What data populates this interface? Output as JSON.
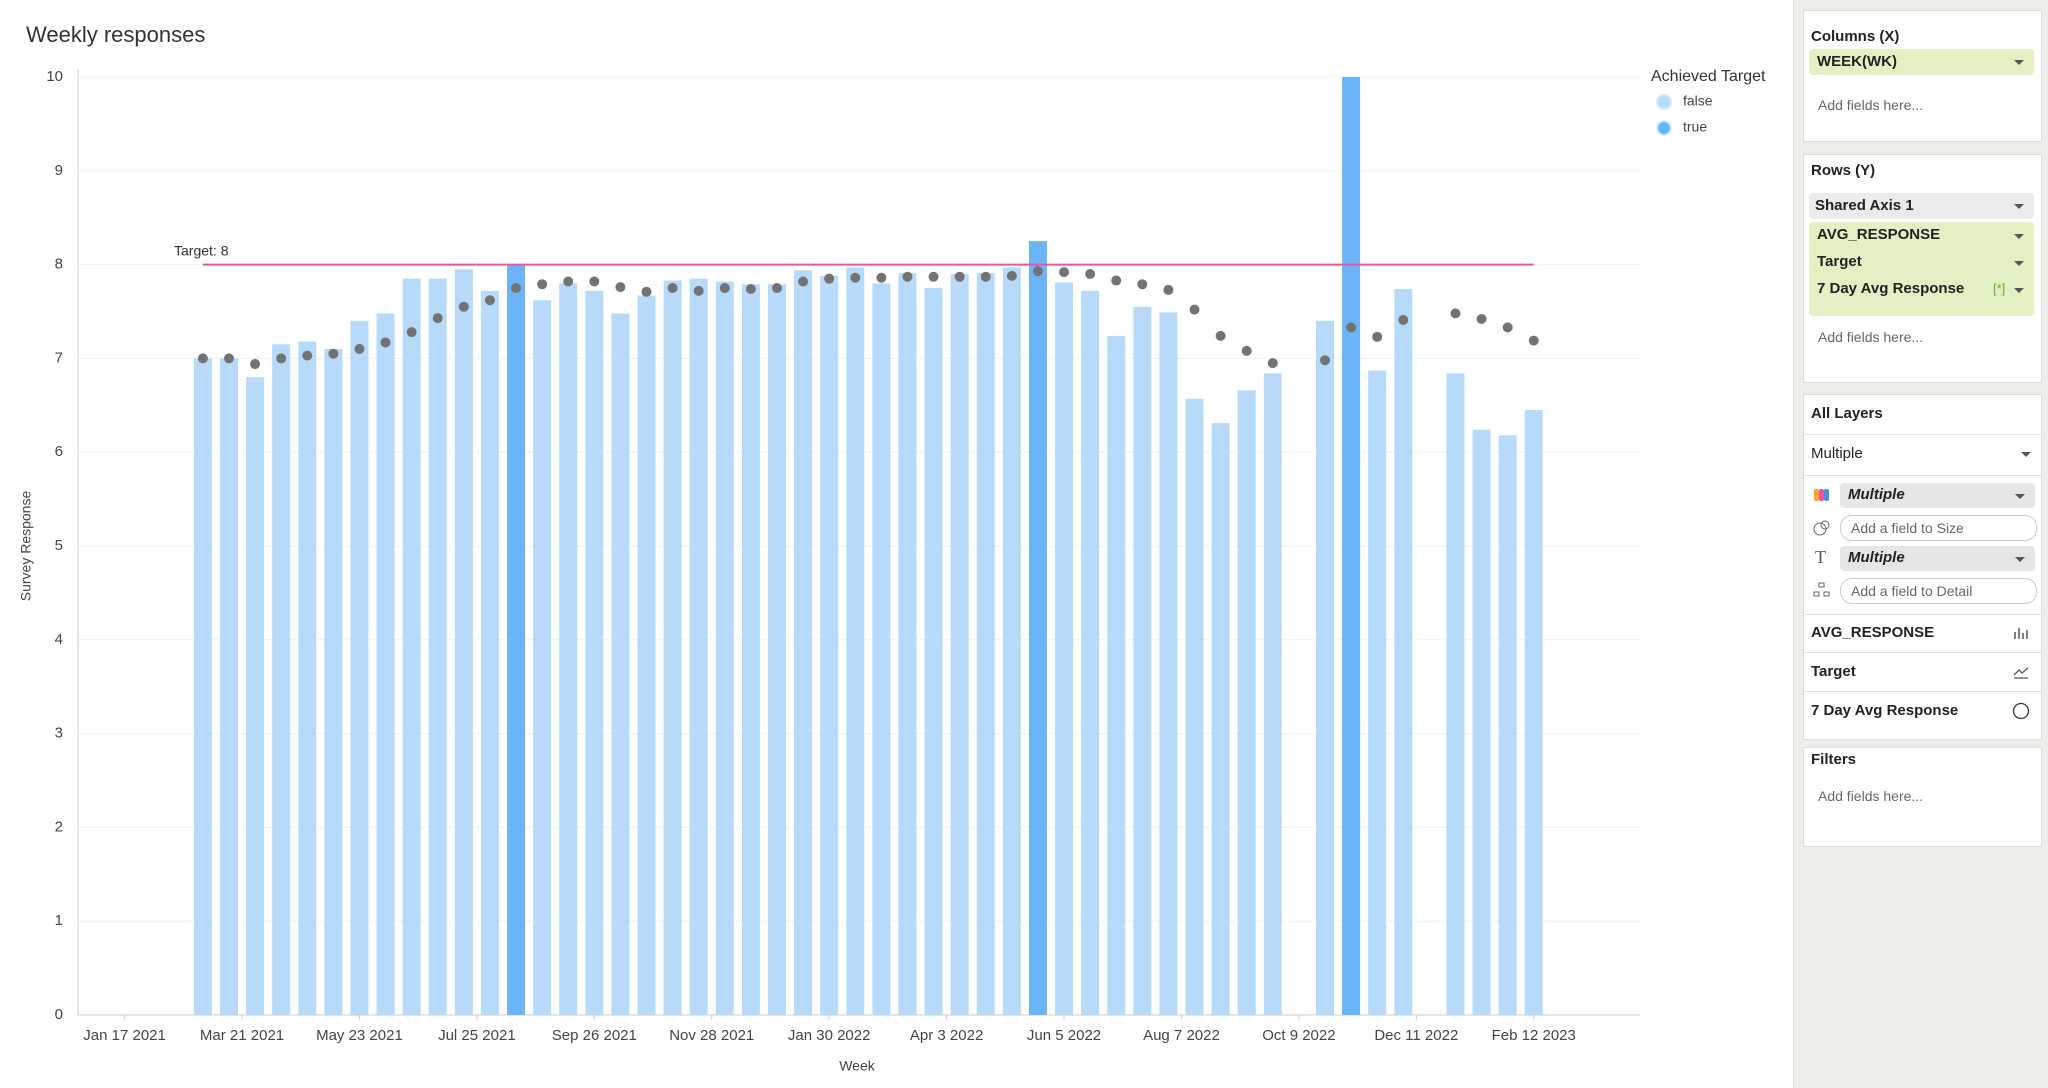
{
  "chart_data": {
    "type": "bar",
    "title": "Weekly responses",
    "x_label": "Week",
    "y_label": "Survey Response",
    "x": [
      "2021-02-28",
      "2021-03-14",
      "2021-03-28",
      "2021-04-11",
      "2021-04-25",
      "2021-05-09",
      "2021-05-23",
      "2021-06-06",
      "2021-06-20",
      "2021-07-04",
      "2021-07-18",
      "2021-08-01",
      "2021-08-15",
      "2021-08-29",
      "2021-09-12",
      "2021-09-26",
      "2021-10-10",
      "2021-10-24",
      "2021-11-07",
      "2021-11-21",
      "2021-12-05",
      "2021-12-19",
      "2022-01-02",
      "2022-01-16",
      "2022-01-30",
      "2022-02-13",
      "2022-02-27",
      "2022-03-13",
      "2022-03-27",
      "2022-04-10",
      "2022-04-24",
      "2022-05-08",
      "2022-05-22",
      "2022-06-05",
      "2022-06-19",
      "2022-07-03",
      "2022-07-17",
      "2022-07-31",
      "2022-08-14",
      "2022-08-28",
      "2022-09-11",
      "2022-09-25",
      "2022-10-09",
      "2022-10-23",
      "2022-11-06",
      "2022-11-20",
      "2022-12-04",
      "2022-12-18",
      "2023-01-01",
      "2023-01-15",
      "2023-01-29",
      "2023-02-12"
    ],
    "series": [
      {
        "mark": "bar",
        "values": [
          7.0,
          7.0,
          6.8,
          7.15,
          7.18,
          7.1,
          7.4,
          7.48,
          7.85,
          7.85,
          7.95,
          7.72,
          8.0,
          7.62,
          7.8,
          7.72,
          7.48,
          7.67,
          7.83,
          7.85,
          7.82,
          7.79,
          7.79,
          7.94,
          7.88,
          7.97,
          7.8,
          7.91,
          7.75,
          7.9,
          7.91,
          7.97,
          8.25,
          7.81,
          7.72,
          7.24,
          7.55,
          7.49,
          6.57,
          6.31,
          6.66,
          6.84,
          null,
          7.4,
          10.0,
          6.87,
          7.74,
          null,
          6.84,
          6.24,
          6.18,
          6.45
        ],
        "achieved": [
          false,
          false,
          false,
          false,
          false,
          false,
          false,
          false,
          false,
          false,
          false,
          false,
          true,
          false,
          false,
          false,
          false,
          false,
          false,
          false,
          false,
          false,
          false,
          false,
          false,
          false,
          false,
          false,
          false,
          false,
          false,
          false,
          true,
          false,
          false,
          false,
          false,
          false,
          false,
          false,
          false,
          false,
          null,
          false,
          true,
          false,
          false,
          null,
          false,
          false,
          false,
          false
        ]
      },
      {
        "mark": "line",
        "color": "#e8559b",
        "values": [
          8,
          8,
          8,
          8,
          8,
          8,
          8,
          8,
          8,
          8,
          8,
          8,
          8,
          8,
          8,
          8,
          8,
          8,
          8,
          8,
          8,
          8,
          8,
          8,
          8,
          8,
          8,
          8,
          8,
          8,
          8,
          8,
          8,
          8,
          8,
          8,
          8,
          8,
          8,
          8,
          8,
          8,
          8,
          8,
          8,
          8,
          8,
          8,
          8,
          8,
          8,
          8
        ]
      },
      {
        "mark": "point",
        "color": "#737373",
        "values": [
          7.0,
          7.0,
          6.94,
          7.0,
          7.03,
          7.05,
          7.1,
          7.17,
          7.28,
          7.43,
          7.55,
          7.62,
          7.75,
          7.79,
          7.82,
          7.82,
          7.76,
          7.71,
          7.75,
          7.72,
          7.75,
          7.74,
          7.75,
          7.82,
          7.85,
          7.86,
          7.86,
          7.87,
          7.87,
          7.87,
          7.87,
          7.88,
          7.93,
          7.92,
          7.9,
          7.83,
          7.79,
          7.73,
          7.52,
          7.24,
          7.08,
          6.95,
          null,
          6.98,
          7.33,
          7.23,
          7.41,
          null,
          7.48,
          7.42,
          7.33,
          7.19
        ]
      }
    ],
    "annotation": "Target: 8",
    "legend": {
      "title": "Achieved Target",
      "position": "top-right",
      "entries": [
        {
          "name": "false",
          "color": "#b7dafb"
        },
        {
          "name": "true",
          "color": "#6cb4f8"
        }
      ]
    },
    "xlim": [
      "2020-12-23",
      "2023-04-10"
    ],
    "xticks": [
      {
        "value": "2021-01-17",
        "label": "Jan 17 2021"
      },
      {
        "value": "2021-03-21",
        "label": "Mar 21 2021"
      },
      {
        "value": "2021-05-23",
        "label": "May 23 2021"
      },
      {
        "value": "2021-07-25",
        "label": "Jul 25 2021"
      },
      {
        "value": "2021-09-26",
        "label": "Sep 26 2021"
      },
      {
        "value": "2021-11-28",
        "label": "Nov 28 2021"
      },
      {
        "value": "2022-01-30",
        "label": "Jan 30 2022"
      },
      {
        "value": "2022-04-03",
        "label": "Apr 3 2022"
      },
      {
        "value": "2022-06-05",
        "label": "Jun 5 2022"
      },
      {
        "value": "2022-08-07",
        "label": "Aug 7 2022"
      },
      {
        "value": "2022-10-09",
        "label": "Oct 9 2022"
      },
      {
        "value": "2022-12-11",
        "label": "Dec 11 2022"
      },
      {
        "value": "2023-02-12",
        "label": "Feb 12 2023"
      }
    ],
    "ylim": [
      0,
      10
    ],
    "yticks": [
      0,
      1,
      2,
      3,
      4,
      5,
      6,
      7,
      8,
      9,
      10
    ],
    "grid": true
  },
  "panel": {
    "columns": {
      "title": "Columns (X)",
      "fields": [
        "WEEK(WK)"
      ],
      "placeholder": "Add fields here..."
    },
    "rows": {
      "title": "Rows (Y)",
      "axis": "Shared Axis 1",
      "fields": [
        "AVG_RESPONSE",
        "Target",
        "7 Day Avg Response"
      ],
      "badge": "[*]",
      "placeholder": "Add fields here..."
    },
    "layers": {
      "title": "All Layers",
      "selector": "Multiple",
      "color": "Multiple",
      "size": "Add a field to Size",
      "text": "Multiple",
      "detail": "Add a field to Detail",
      "list": [
        "AVG_RESPONSE",
        "Target",
        "7 Day Avg Response"
      ]
    },
    "filters": {
      "title": "Filters",
      "placeholder": "Add fields here..."
    }
  }
}
